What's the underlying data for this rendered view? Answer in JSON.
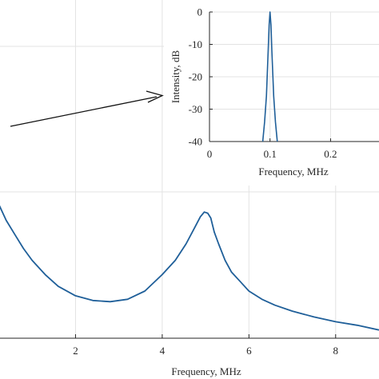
{
  "chart_data": [
    {
      "type": "line",
      "role": "main",
      "xlabel": "Frequency, MHz",
      "ylabel": "",
      "xlim": [
        0,
        9
      ],
      "ylim": [
        0,
        1
      ],
      "xticks": [
        2,
        4,
        6,
        8
      ],
      "xtick_labels": [
        "2",
        "4",
        "6",
        "8"
      ],
      "grid": true,
      "line_color": "#1f5f99",
      "series": [
        {
          "x": [
            0,
            0.2,
            0.4,
            0.6,
            0.8,
            1.0,
            1.3,
            1.6,
            2.0,
            2.4,
            2.8,
            3.2,
            3.6,
            4.0,
            4.3,
            4.55,
            4.75,
            4.88,
            4.97,
            5.05,
            5.12,
            5.2,
            5.3,
            5.45,
            5.6,
            5.8,
            6.0,
            6.3,
            6.6,
            7.0,
            7.5,
            8.0,
            8.5,
            9.0
          ],
          "y": [
            0.62,
            0.58,
            0.5,
            0.44,
            0.38,
            0.33,
            0.27,
            0.22,
            0.18,
            0.16,
            0.155,
            0.165,
            0.2,
            0.27,
            0.33,
            0.4,
            0.47,
            0.515,
            0.535,
            0.53,
            0.51,
            0.45,
            0.4,
            0.33,
            0.28,
            0.24,
            0.2,
            0.165,
            0.14,
            0.115,
            0.09,
            0.07,
            0.055,
            0.035
          ]
        }
      ]
    },
    {
      "type": "line",
      "role": "inset",
      "xlabel": "Frequency, MHz",
      "ylabel": "Intensity, dB",
      "xlim": [
        0,
        0.28
      ],
      "ylim": [
        -40,
        0
      ],
      "xticks": [
        0,
        0.1,
        0.2
      ],
      "xtick_labels": [
        "0",
        "0.1",
        "0.2"
      ],
      "yticks": [
        0,
        -10,
        -20,
        -30,
        -40
      ],
      "ytick_labels": [
        "0",
        "-10",
        "-20",
        "-30",
        "-40"
      ],
      "grid": true,
      "line_color": "#1f5f99",
      "series": [
        {
          "x": [
            0.088,
            0.091,
            0.094,
            0.097,
            0.0985,
            0.1,
            0.1015,
            0.103,
            0.106,
            0.109,
            0.112
          ],
          "y": [
            -40,
            -34,
            -26,
            -12,
            -4,
            0,
            -4,
            -12,
            -26,
            -34,
            -40
          ]
        }
      ]
    }
  ]
}
